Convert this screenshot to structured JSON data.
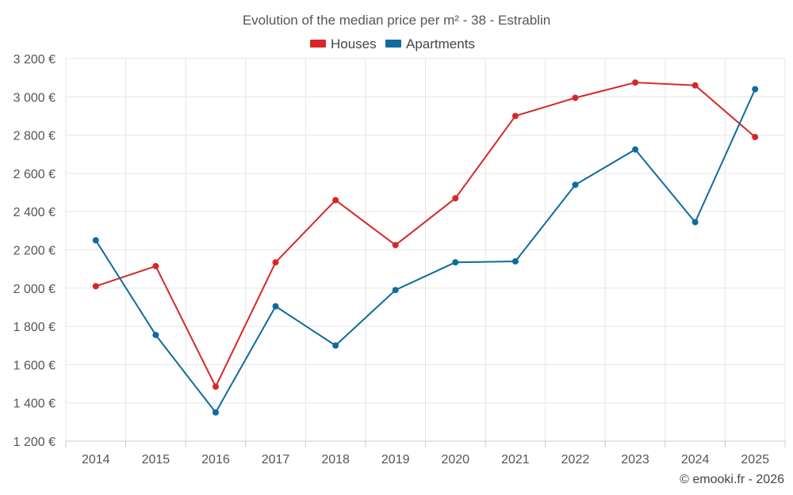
{
  "chart_data": {
    "type": "line",
    "title": "Evolution of the median price per m² - 38 - Estrablin",
    "x": [
      "2014",
      "2015",
      "2016",
      "2017",
      "2018",
      "2019",
      "2020",
      "2021",
      "2022",
      "2023",
      "2024",
      "2025"
    ],
    "series": [
      {
        "name": "Houses",
        "color": "#d62728",
        "values": [
          2010,
          2115,
          1485,
          2135,
          2460,
          2225,
          2470,
          2900,
          2995,
          3075,
          3060,
          2790
        ]
      },
      {
        "name": "Apartments",
        "color": "#0f6b9e",
        "values": [
          2250,
          1755,
          1350,
          1905,
          1700,
          1990,
          2135,
          2140,
          2540,
          2725,
          2345,
          3040
        ]
      }
    ],
    "ylim": [
      1200,
      3200
    ],
    "yticks": [
      1200,
      1400,
      1600,
      1800,
      2000,
      2200,
      2400,
      2600,
      2800,
      3000,
      3200
    ],
    "ytick_labels": [
      "1 200 €",
      "1 400 €",
      "1 600 €",
      "1 800 €",
      "2 000 €",
      "2 200 €",
      "2 400 €",
      "2 600 €",
      "2 800 €",
      "3 000 €",
      "3 200 €"
    ],
    "xlabel": "",
    "ylabel": "",
    "grid": true,
    "legend_position": "top-center"
  },
  "credit": "© emooki.fr - 2026"
}
